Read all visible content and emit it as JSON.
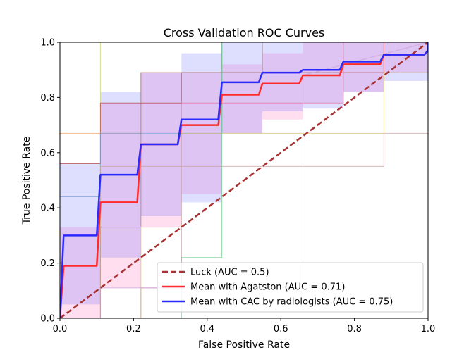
{
  "chart_data": {
    "type": "line",
    "title": "Cross Validation ROC Curves",
    "xlabel": "False Positive Rate",
    "ylabel": "True Positive Rate",
    "xlim": [
      0,
      1
    ],
    "ylim": [
      0,
      1
    ],
    "xticks": [
      "0.0",
      "0.2",
      "0.4",
      "0.6",
      "0.8",
      "1.0"
    ],
    "yticks": [
      "0.0",
      "0.2",
      "0.4",
      "0.6",
      "0.8",
      "1.0"
    ],
    "grid": false,
    "legend_position": "lower-right",
    "series": [
      {
        "name": "Luck (AUC = 0.5)",
        "color": "#a83232",
        "style": "dashed",
        "x": [
          0,
          1
        ],
        "y": [
          0,
          1
        ]
      },
      {
        "name": "Mean with Agatston (AUC = 0.71)",
        "color": "#ff2a2a",
        "style": "solid",
        "x": [
          0,
          0.01,
          0.01,
          0.1,
          0.11,
          0.11,
          0.21,
          0.22,
          0.22,
          0.32,
          0.33,
          0.33,
          0.43,
          0.44,
          0.44,
          0.54,
          0.55,
          0.55,
          0.65,
          0.66,
          0.66,
          0.76,
          0.77,
          0.77,
          0.87,
          0.88,
          0.88,
          0.99,
          1.0,
          1.0
        ],
        "y": [
          0,
          0.19,
          0.19,
          0.19,
          0.42,
          0.42,
          0.42,
          0.63,
          0.63,
          0.63,
          0.7,
          0.7,
          0.7,
          0.81,
          0.81,
          0.81,
          0.85,
          0.85,
          0.85,
          0.88,
          0.88,
          0.88,
          0.92,
          0.92,
          0.92,
          0.955,
          0.955,
          0.955,
          0.97,
          1.0
        ]
      },
      {
        "name": "Mean with CAC by radiologists (AUC = 0.75)",
        "color": "#2a2aff",
        "style": "solid",
        "x": [
          0,
          0.01,
          0.01,
          0.1,
          0.11,
          0.11,
          0.21,
          0.22,
          0.22,
          0.32,
          0.33,
          0.33,
          0.43,
          0.44,
          0.44,
          0.54,
          0.55,
          0.55,
          0.65,
          0.66,
          0.66,
          0.76,
          0.77,
          0.77,
          0.87,
          0.88,
          0.88,
          0.99,
          1.0,
          1.0
        ],
        "y": [
          0,
          0.3,
          0.3,
          0.3,
          0.52,
          0.52,
          0.52,
          0.63,
          0.63,
          0.63,
          0.72,
          0.72,
          0.72,
          0.855,
          0.855,
          0.855,
          0.89,
          0.89,
          0.89,
          0.9,
          0.9,
          0.9,
          0.93,
          0.93,
          0.93,
          0.955,
          0.955,
          0.955,
          0.97,
          1.0
        ]
      }
    ],
    "bands": [
      {
        "color": "#ff69b4",
        "opacity": 0.22,
        "x": [
          0,
          0.11,
          0.11,
          0.22,
          0.22,
          0.33,
          0.33,
          0.44,
          0.44,
          0.55,
          0.55,
          0.66,
          0.66,
          0.77,
          0.77,
          0.88,
          0.88,
          1.0
        ],
        "upper": [
          0.33,
          0.33,
          0.78,
          0.78,
          0.89,
          0.89,
          0.89,
          0.89,
          0.92,
          0.92,
          0.96,
          0.96,
          1.0,
          1.0,
          1.0,
          1.0,
          1.0,
          1.0
        ],
        "lower": [
          0.0,
          0.0,
          0.11,
          0.11,
          0.33,
          0.33,
          0.45,
          0.45,
          0.67,
          0.67,
          0.72,
          0.72,
          0.78,
          0.78,
          0.82,
          0.82,
          0.89,
          0.89
        ]
      },
      {
        "color": "#6a6aff",
        "opacity": 0.22,
        "x": [
          0,
          0.11,
          0.11,
          0.22,
          0.22,
          0.33,
          0.33,
          0.44,
          0.44,
          0.55,
          0.55,
          0.66,
          0.66,
          0.77,
          0.77,
          0.88,
          0.88,
          1.0
        ],
        "upper": [
          0.56,
          0.56,
          0.82,
          0.82,
          0.89,
          0.89,
          0.96,
          0.96,
          1.0,
          1.0,
          1.0,
          1.0,
          1.0,
          1.0,
          1.0,
          1.0,
          1.0,
          1.0
        ],
        "lower": [
          0.05,
          0.05,
          0.22,
          0.22,
          0.37,
          0.37,
          0.42,
          0.42,
          0.67,
          0.67,
          0.75,
          0.75,
          0.76,
          0.76,
          0.82,
          0.82,
          0.86,
          0.86
        ]
      }
    ],
    "fold_curves": [
      {
        "color": "#c8d47a",
        "x": [
          0,
          0.11,
          0.11,
          0.11,
          0.44,
          0.44,
          1.0
        ],
        "y": [
          0.0,
          0.0,
          0.56,
          1.0,
          1.0,
          1.0,
          1.0
        ]
      },
      {
        "color": "#f0a060",
        "x": [
          0,
          0,
          0.22,
          0.22,
          0.44,
          0.44,
          1.0
        ],
        "y": [
          0.0,
          0.67,
          0.67,
          0.89,
          0.89,
          1.0,
          1.0
        ]
      },
      {
        "color": "#b04a4a",
        "x": [
          0,
          0,
          0.11,
          0.11,
          0.33,
          0.33,
          0.88,
          0.88,
          1.0
        ],
        "y": [
          0.0,
          0.56,
          0.56,
          0.78,
          0.78,
          0.89,
          0.89,
          1.0,
          1.0
        ]
      },
      {
        "color": "#7aa0e0",
        "x": [
          0,
          0,
          0.11,
          0.11,
          0.44,
          0.44,
          1.0
        ],
        "y": [
          0.0,
          0.44,
          0.44,
          0.67,
          0.67,
          1.0,
          1.0
        ]
      },
      {
        "color": "#6ac88a",
        "x": [
          0,
          0.33,
          0.33,
          0.44,
          0.44,
          0.44,
          1.0
        ],
        "y": [
          0.0,
          0.0,
          0.22,
          0.22,
          0.67,
          1.0,
          1.0
        ]
      },
      {
        "color": "#a08080",
        "x": [
          0,
          0.11,
          0.11,
          0.22,
          0.22,
          0.55,
          0.55,
          1.0
        ],
        "y": [
          0.0,
          0.0,
          0.33,
          0.33,
          0.89,
          0.89,
          1.0,
          1.0
        ]
      },
      {
        "color": "#e07aa0",
        "x": [
          0,
          0.22,
          0.22,
          0.33,
          0.33,
          0.77,
          0.77,
          1.0
        ],
        "y": [
          0.0,
          0.0,
          0.11,
          0.11,
          0.78,
          0.78,
          1.0,
          1.0
        ]
      },
      {
        "color": "#c8a0d8",
        "x": [
          0,
          0.11,
          0.11,
          0.66,
          0.66,
          1.0
        ],
        "y": [
          0.0,
          0.0,
          0.11,
          0.11,
          0.88,
          1.0
        ]
      },
      {
        "color": "#d4c070",
        "x": [
          0,
          0.22,
          0.22,
          0.33,
          0.33,
          0.88,
          0.88,
          1.0
        ],
        "y": [
          0.0,
          0.0,
          0.33,
          0.33,
          0.67,
          0.67,
          0.89,
          0.89
        ]
      },
      {
        "color": "#c8a0a0",
        "x": [
          0,
          0.11,
          0.11,
          0.88,
          0.88,
          1.0
        ],
        "y": [
          0.0,
          0.0,
          0.55,
          0.55,
          0.67,
          0.67
        ]
      }
    ]
  }
}
